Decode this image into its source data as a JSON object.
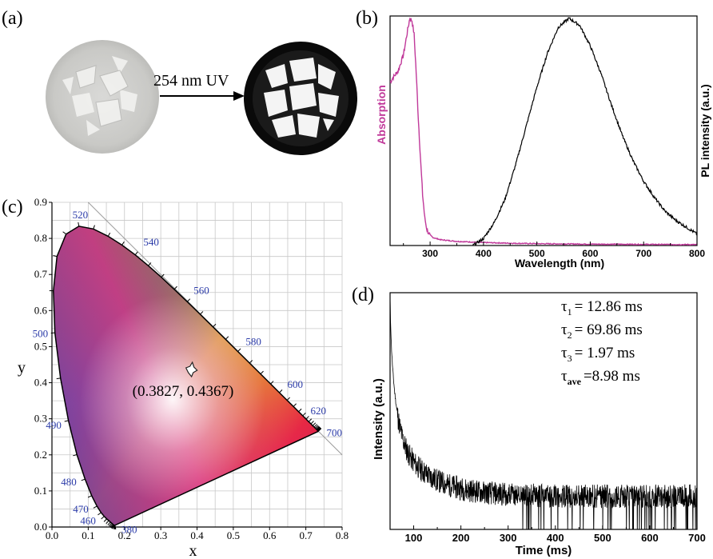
{
  "panel_labels": {
    "a": "(a)",
    "b": "(b)",
    "c": "(c)",
    "d": "(d)"
  },
  "panel_a": {
    "arrow_label": "254 nm UV"
  },
  "chart_data": [
    {
      "panel": "b",
      "type": "line",
      "xlabel": "Wavelength (nm)",
      "ylabel_left": "Absorption",
      "ylabel_right": "PL intensity (a.u.)",
      "xlim": [
        225,
        800
      ],
      "ylim": [
        0,
        1.0
      ],
      "x_ticks": [
        "300",
        "400",
        "500",
        "600",
        "700",
        "800"
      ],
      "colors": {
        "absorption": "#c0399a",
        "pl": "#000000"
      },
      "series": [
        {
          "name": "Absorption",
          "x": [
            225,
            230,
            240,
            250,
            258,
            262,
            266,
            270,
            274,
            278,
            282,
            286,
            290,
            294,
            298,
            305,
            320,
            350,
            400,
            450,
            500,
            600,
            700,
            800
          ],
          "y": [
            0.71,
            0.73,
            0.76,
            0.83,
            0.94,
            0.99,
            0.98,
            0.92,
            0.75,
            0.55,
            0.38,
            0.22,
            0.12,
            0.07,
            0.05,
            0.035,
            0.025,
            0.018,
            0.013,
            0.01,
            0.008,
            0.006,
            0.005,
            0.004
          ]
        },
        {
          "name": "PL",
          "x": [
            380,
            400,
            420,
            440,
            460,
            480,
            500,
            520,
            540,
            560,
            580,
            600,
            620,
            640,
            660,
            680,
            700,
            720,
            740,
            760,
            780,
            800
          ],
          "y": [
            0.0,
            0.03,
            0.1,
            0.2,
            0.35,
            0.52,
            0.69,
            0.84,
            0.95,
            0.99,
            0.96,
            0.87,
            0.75,
            0.61,
            0.48,
            0.37,
            0.28,
            0.21,
            0.15,
            0.11,
            0.08,
            0.05
          ]
        }
      ]
    },
    {
      "panel": "c",
      "type": "scatter",
      "xlabel": "x",
      "ylabel": "y",
      "xlim": [
        0.0,
        0.8
      ],
      "ylim": [
        0.0,
        0.9
      ],
      "x_ticks": [
        "0.0",
        "0.1",
        "0.2",
        "0.3",
        "0.4",
        "0.5",
        "0.6",
        "0.7",
        "0.8"
      ],
      "y_ticks": [
        "0.0",
        "0.1",
        "0.2",
        "0.3",
        "0.4",
        "0.5",
        "0.6",
        "0.7",
        "0.8",
        "0.9"
      ],
      "grid": true,
      "point": {
        "x": 0.3827,
        "y": 0.4367,
        "label": "(0.3827, 0.4367)"
      },
      "wavelength_labels": [
        {
          "text": "520",
          "x": 0.074,
          "y": 0.834
        },
        {
          "text": "540",
          "x": 0.23,
          "y": 0.754
        },
        {
          "text": "560",
          "x": 0.373,
          "y": 0.624
        },
        {
          "text": "580",
          "x": 0.512,
          "y": 0.487
        },
        {
          "text": "600",
          "x": 0.627,
          "y": 0.372
        },
        {
          "text": "620",
          "x": 0.691,
          "y": 0.308
        },
        {
          "text": "700",
          "x": 0.735,
          "y": 0.265
        },
        {
          "text": "500",
          "x": 0.008,
          "y": 0.538
        },
        {
          "text": "490",
          "x": 0.045,
          "y": 0.295
        },
        {
          "text": "480",
          "x": 0.091,
          "y": 0.133
        },
        {
          "text": "470",
          "x": 0.124,
          "y": 0.058
        },
        {
          "text": "460",
          "x": 0.144,
          "y": 0.03
        },
        {
          "text": "380",
          "x": 0.174,
          "y": 0.005
        }
      ],
      "locus": [
        [
          0.1741,
          0.005
        ],
        [
          0.1738,
          0.0049
        ],
        [
          0.1736,
          0.0049
        ],
        [
          0.1733,
          0.0048
        ],
        [
          0.173,
          0.0048
        ],
        [
          0.1726,
          0.0048
        ],
        [
          0.1721,
          0.0048
        ],
        [
          0.1714,
          0.0051
        ],
        [
          0.1703,
          0.0058
        ],
        [
          0.1689,
          0.0069
        ],
        [
          0.1669,
          0.0086
        ],
        [
          0.1644,
          0.0109
        ],
        [
          0.1611,
          0.0138
        ],
        [
          0.1566,
          0.0177
        ],
        [
          0.151,
          0.0227
        ],
        [
          0.144,
          0.0297
        ],
        [
          0.1355,
          0.0399
        ],
        [
          0.1241,
          0.0578
        ],
        [
          0.1096,
          0.0868
        ],
        [
          0.0913,
          0.1327
        ],
        [
          0.0687,
          0.2007
        ],
        [
          0.0454,
          0.295
        ],
        [
          0.0235,
          0.4127
        ],
        [
          0.0082,
          0.5384
        ],
        [
          0.0039,
          0.6548
        ],
        [
          0.0139,
          0.7502
        ],
        [
          0.0389,
          0.812
        ],
        [
          0.0743,
          0.8338
        ],
        [
          0.1142,
          0.8262
        ],
        [
          0.1547,
          0.8059
        ],
        [
          0.1929,
          0.7816
        ],
        [
          0.2296,
          0.7543
        ],
        [
          0.2658,
          0.7243
        ],
        [
          0.3016,
          0.6923
        ],
        [
          0.3373,
          0.6589
        ],
        [
          0.3731,
          0.6245
        ],
        [
          0.4087,
          0.5896
        ],
        [
          0.4441,
          0.5547
        ],
        [
          0.4788,
          0.5202
        ],
        [
          0.5125,
          0.4866
        ],
        [
          0.5448,
          0.4544
        ],
        [
          0.5752,
          0.4242
        ],
        [
          0.6029,
          0.3965
        ],
        [
          0.627,
          0.3725
        ],
        [
          0.6482,
          0.3514
        ],
        [
          0.6658,
          0.334
        ],
        [
          0.6801,
          0.3197
        ],
        [
          0.6915,
          0.3083
        ],
        [
          0.7006,
          0.2993
        ],
        [
          0.7079,
          0.292
        ],
        [
          0.714,
          0.2859
        ],
        [
          0.719,
          0.2809
        ],
        [
          0.723,
          0.277
        ],
        [
          0.726,
          0.274
        ],
        [
          0.7283,
          0.2717
        ],
        [
          0.73,
          0.27
        ],
        [
          0.7311,
          0.2689
        ],
        [
          0.732,
          0.268
        ],
        [
          0.7327,
          0.2673
        ],
        [
          0.7334,
          0.2666
        ],
        [
          0.734,
          0.266
        ],
        [
          0.7344,
          0.2656
        ],
        [
          0.7346,
          0.2654
        ],
        [
          0.7347,
          0.2653
        ]
      ]
    },
    {
      "panel": "d",
      "type": "line",
      "xlabel": "Time (ms)",
      "ylabel": "Intensity (a.u.)",
      "xlim": [
        50,
        700
      ],
      "ylim": [
        0,
        1.0
      ],
      "x_ticks": [
        "100",
        "200",
        "300",
        "400",
        "500",
        "600",
        "700"
      ],
      "tau_labels": [
        {
          "symbol": "τ",
          "sub": "1",
          "value": "=  12.86 ms"
        },
        {
          "symbol": "τ",
          "sub": "2",
          "value": "=  69.86 ms"
        },
        {
          "symbol": "τ",
          "sub": "3",
          "value": "=    1.97 ms"
        },
        {
          "symbol": "τ",
          "sub": "ave",
          "value": "=8.98 ms"
        }
      ],
      "decay": {
        "a1": 0.42,
        "t1": 12.86,
        "a2": 0.28,
        "t2": 69.86,
        "a3": 0.14,
        "t3": 1.97,
        "baseline": 0.14,
        "noise": 0.1,
        "t0": 50
      }
    }
  ]
}
